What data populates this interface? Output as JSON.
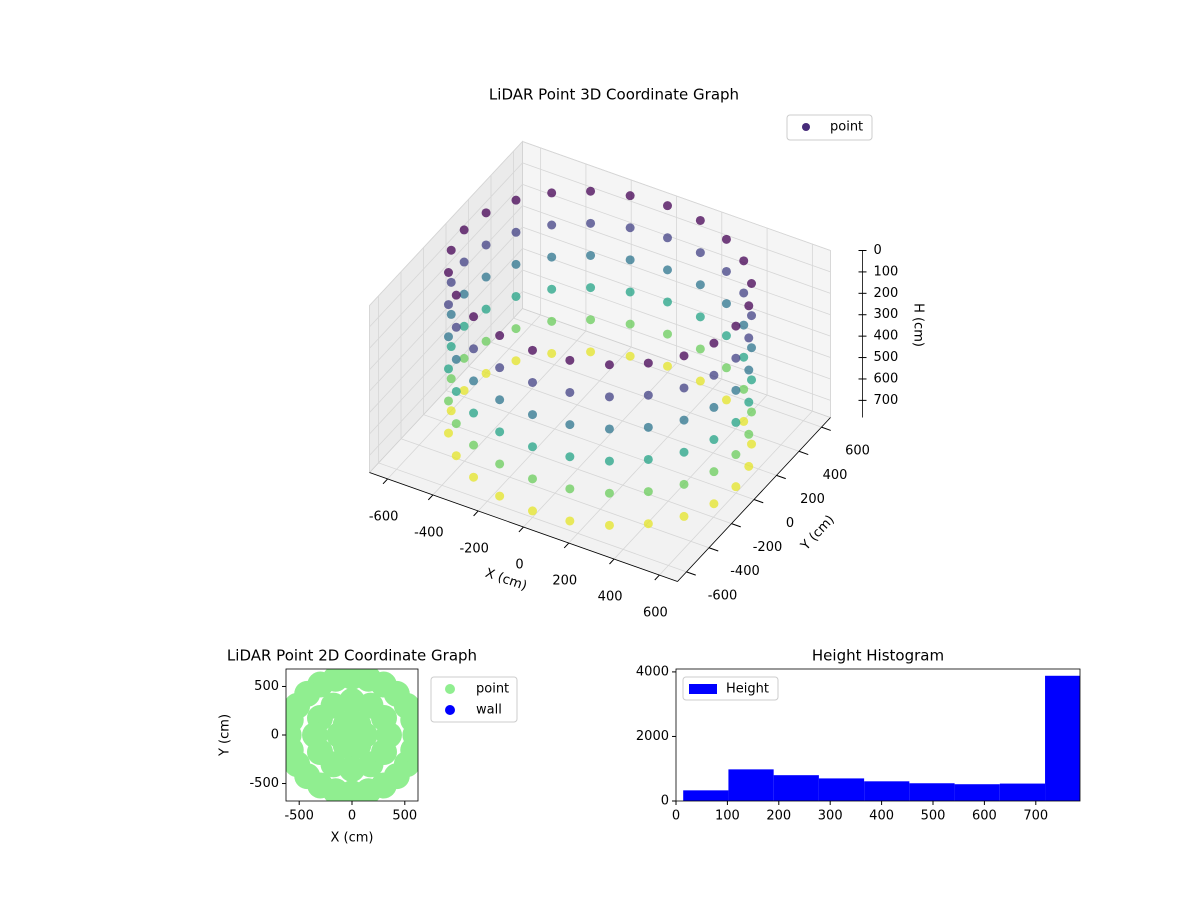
{
  "chart_data": [
    {
      "type": "scatter3d",
      "title": "LiDAR Point 3D Coordinate Graph",
      "xlabel": "X (cm)",
      "ylabel": "Y (cm)",
      "zlabel": "H (cm)",
      "xlim": [
        -680,
        680
      ],
      "ylim": [
        -680,
        680
      ],
      "zlim": [
        0,
        780
      ],
      "z_inverted": true,
      "legend": "upper right",
      "xticks": [
        -600,
        -400,
        -200,
        0,
        200,
        400,
        600
      ],
      "yticks": [
        -600,
        -400,
        -200,
        0,
        200,
        400,
        600
      ],
      "zticks": [
        0,
        100,
        200,
        300,
        400,
        500,
        600,
        700
      ],
      "series": [
        {
          "name": "point",
          "color": "#472c7a",
          "colormap": "viridis",
          "x": [
            600,
            580,
            520,
            424,
            300,
            155,
            0,
            -155,
            -300,
            -424,
            -520,
            -580,
            -600,
            -580,
            -520,
            -424,
            -300,
            -155,
            0,
            155,
            300,
            424,
            520,
            580,
            600,
            580,
            520,
            424,
            300,
            155,
            0,
            -155,
            -300,
            -424,
            -520,
            -580,
            -600,
            -580,
            -520,
            -424,
            -300,
            -155,
            0,
            155,
            300,
            424,
            520,
            580,
            600,
            580,
            520,
            424,
            300,
            155,
            0,
            -155,
            -300,
            -424,
            -520,
            -580,
            -600,
            -580,
            -520,
            -424,
            -300,
            -155,
            0,
            155,
            300,
            424,
            520,
            580,
            600,
            580,
            520,
            424,
            300,
            155,
            0,
            -155,
            -300,
            -424,
            -520,
            -580,
            -600,
            -580,
            -520,
            -424,
            -300,
            -155,
            0,
            155,
            300,
            424,
            520,
            580,
            600,
            580,
            520,
            424,
            300,
            155,
            0,
            -155,
            -300,
            -424,
            -520,
            -580,
            -600,
            -580,
            -520,
            -424,
            -300,
            -155,
            0,
            155,
            300,
            424,
            520,
            580,
            600,
            580,
            520,
            424,
            300,
            155,
            0,
            -155,
            -300,
            -424,
            -520,
            -580,
            -600,
            -580,
            -520,
            -424,
            -300,
            -155,
            0,
            155,
            300,
            424,
            520,
            580
          ],
          "y": [
            0,
            155,
            300,
            424,
            520,
            580,
            600,
            580,
            520,
            424,
            300,
            155,
            0,
            -155,
            -300,
            -424,
            -520,
            -580,
            -600,
            -580,
            -520,
            -424,
            -300,
            -155,
            0,
            155,
            300,
            424,
            520,
            580,
            600,
            580,
            520,
            424,
            300,
            155,
            0,
            -155,
            -300,
            -424,
            -520,
            -580,
            -600,
            -580,
            -520,
            -424,
            -300,
            -155,
            0,
            155,
            300,
            424,
            520,
            580,
            600,
            580,
            520,
            424,
            300,
            155,
            0,
            -155,
            -300,
            -424,
            -520,
            -580,
            -600,
            -580,
            -520,
            -424,
            -300,
            -155,
            0,
            155,
            300,
            424,
            520,
            580,
            600,
            580,
            520,
            424,
            300,
            155,
            0,
            -155,
            -300,
            -424,
            -520,
            -580,
            -600,
            -580,
            -520,
            -424,
            -300,
            -155,
            0,
            155,
            300,
            424,
            520,
            580,
            600,
            580,
            520,
            424,
            300,
            155,
            0,
            -155,
            -300,
            -424,
            -520,
            -580,
            -600,
            -580,
            -520,
            -424,
            -300,
            -155,
            0,
            155,
            300,
            424,
            520,
            580,
            600,
            580,
            520,
            424,
            300,
            155,
            0,
            -155,
            -300,
            -424,
            -520,
            -580,
            -600,
            -580,
            -520,
            -424,
            -300,
            -155
          ],
          "z": [
            0,
            0,
            0,
            0,
            0,
            0,
            0,
            0,
            0,
            0,
            0,
            0,
            0,
            0,
            0,
            0,
            0,
            0,
            0,
            0,
            0,
            0,
            0,
            0,
            150,
            150,
            150,
            150,
            150,
            150,
            150,
            150,
            150,
            150,
            150,
            150,
            150,
            150,
            150,
            150,
            150,
            150,
            150,
            150,
            150,
            150,
            150,
            150,
            300,
            300,
            300,
            300,
            300,
            300,
            300,
            300,
            300,
            300,
            300,
            300,
            300,
            300,
            300,
            300,
            300,
            300,
            300,
            300,
            300,
            300,
            300,
            300,
            450,
            450,
            450,
            450,
            450,
            450,
            450,
            450,
            450,
            450,
            450,
            450,
            450,
            450,
            450,
            450,
            450,
            450,
            450,
            450,
            450,
            450,
            450,
            450,
            600,
            600,
            600,
            600,
            600,
            600,
            600,
            600,
            600,
            600,
            600,
            600,
            600,
            600,
            600,
            600,
            600,
            600,
            600,
            600,
            600,
            600,
            600,
            600,
            750,
            750,
            750,
            750,
            750,
            750,
            750,
            750,
            750,
            750,
            750,
            750,
            750,
            750,
            750,
            750,
            750,
            750,
            750,
            750,
            750,
            750,
            750,
            750
          ]
        }
      ]
    },
    {
      "type": "scatter",
      "title": "LiDAR Point 2D Coordinate Graph",
      "xlabel": "X (cm)",
      "ylabel": "Y (cm)",
      "xlim": [
        -625,
        625
      ],
      "ylim": [
        -680,
        680
      ],
      "xticks": [
        -500,
        0,
        500
      ],
      "yticks": [
        -500,
        0,
        500
      ],
      "legend": "outside right",
      "series": [
        {
          "name": "point",
          "color": "#90ee90",
          "x": [
            600,
            580,
            520,
            424,
            300,
            155,
            0,
            -155,
            -300,
            -424,
            -520,
            -580,
            -600,
            -580,
            -520,
            -424,
            -300,
            -155,
            0,
            155,
            300,
            424,
            520,
            580,
            350,
            303,
            175,
            0,
            -175,
            -303,
            -350,
            -303,
            -175,
            0,
            175,
            303,
            120,
            60,
            -60,
            -120,
            -60,
            60,
            0
          ],
          "y": [
            0,
            155,
            300,
            424,
            520,
            580,
            600,
            580,
            520,
            424,
            300,
            155,
            0,
            -155,
            -300,
            -424,
            -520,
            -580,
            -600,
            -580,
            -520,
            -424,
            -300,
            -155,
            0,
            175,
            303,
            350,
            303,
            175,
            0,
            -175,
            -303,
            -350,
            -303,
            -175,
            0,
            104,
            104,
            0,
            -104,
            -104,
            0
          ]
        },
        {
          "name": "wall",
          "color": "#0000ff",
          "x": [],
          "y": []
        }
      ]
    },
    {
      "type": "histogram",
      "title": "Height Histogram",
      "name": "Height",
      "color": "#0000ff",
      "legend": "upper left",
      "bins": [
        14,
        102,
        190,
        278,
        366,
        454,
        542,
        630,
        718,
        806
      ],
      "values": [
        330,
        980,
        800,
        700,
        610,
        550,
        520,
        540,
        3880
      ],
      "xlim": [
        0,
        786
      ],
      "ylim": [
        0,
        4090
      ],
      "xticks": [
        0,
        100,
        200,
        300,
        400,
        500,
        600,
        700
      ],
      "yticks": [
        0,
        2000,
        4000
      ]
    }
  ]
}
